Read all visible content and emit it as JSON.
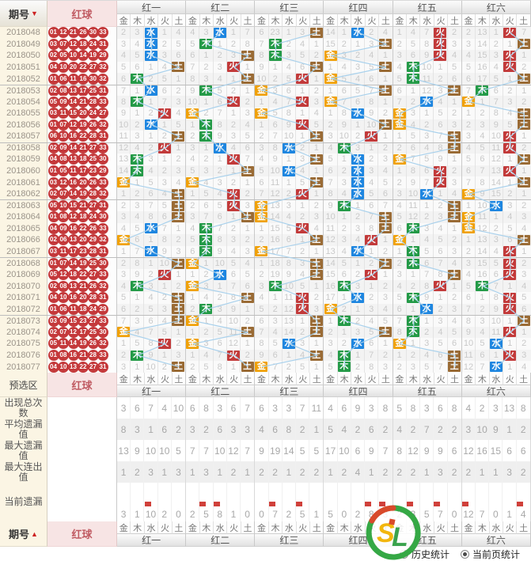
{
  "header": {
    "period_label": "期号",
    "sort_down": "▼",
    "sort_up": "▲",
    "ball_label": "红球",
    "preselect_label": "预选区"
  },
  "groups": [
    "红一",
    "红二",
    "红三",
    "红四",
    "红五",
    "红六"
  ],
  "elements": [
    "金",
    "木",
    "水",
    "火",
    "土"
  ],
  "element_colors": {
    "金": "#f0a108",
    "木": "#239a47",
    "水": "#1e86e0",
    "火": "#c23a3a",
    "土": "#9a6b35"
  },
  "trend_line_color": "#a9d1ec",
  "initial_miss": [
    [
      1,
      2,
      0,
      0,
      3
    ],
    [
      3,
      2,
      0,
      0,
      6
    ],
    [
      5,
      22,
      0,
      2,
      0
    ],
    [
      13,
      0,
      0,
      1,
      3
    ],
    [
      0,
      3,
      6,
      0,
      1
    ],
    [
      1,
      12,
      0,
      0,
      6
    ]
  ],
  "rows": [
    {
      "period": "2018048",
      "balls": [
        "01",
        "12",
        "21",
        "26",
        "30",
        "33"
      ],
      "hits": "水水土水火火"
    },
    {
      "period": "2018049",
      "balls": [
        "03",
        "07",
        "12",
        "18",
        "24",
        "31"
      ],
      "hits": "水木木土火土"
    },
    {
      "period": "2018050",
      "balls": [
        "02",
        "05",
        "10",
        "14",
        "19",
        "29"
      ],
      "hits": "水土木金火火"
    },
    {
      "period": "2018051",
      "balls": [
        "04",
        "10",
        "20",
        "22",
        "27",
        "32"
      ],
      "hits": "土火土土木火"
    },
    {
      "period": "2018052",
      "balls": [
        "01",
        "06",
        "11",
        "16",
        "30",
        "32"
      ],
      "hits": "木土火金木土"
    },
    {
      "period": "2018053",
      "balls": [
        "02",
        "08",
        "13",
        "17",
        "25",
        "31"
      ],
      "hits": "水木金土土木"
    },
    {
      "period": "2018054",
      "balls": [
        "05",
        "09",
        "14",
        "21",
        "28",
        "33"
      ],
      "hits": "木火火金水金"
    },
    {
      "period": "2018055",
      "balls": [
        "03",
        "11",
        "15",
        "20",
        "24",
        "27"
      ],
      "hits": "火金金水金土"
    },
    {
      "period": "2018056",
      "balls": [
        "01",
        "07",
        "12",
        "19",
        "26",
        "32"
      ],
      "hits": "水木火土金土"
    },
    {
      "period": "2018057",
      "balls": [
        "06",
        "10",
        "16",
        "22",
        "28",
        "31"
      ],
      "hits": "土木土火土火"
    },
    {
      "period": "2018058",
      "balls": [
        "02",
        "09",
        "14",
        "21",
        "27",
        "33"
      ],
      "hits": "火水水木土火"
    },
    {
      "period": "2018059",
      "balls": [
        "04",
        "08",
        "13",
        "18",
        "25",
        "30"
      ],
      "hits": "木火土水金土"
    },
    {
      "period": "2018060",
      "balls": [
        "01",
        "05",
        "11",
        "17",
        "23",
        "29"
      ],
      "hits": "木土水水火火"
    },
    {
      "period": "2018061",
      "balls": [
        "03",
        "12",
        "16",
        "20",
        "26",
        "33"
      ],
      "hits": "金金土水火土"
    },
    {
      "period": "2018062",
      "balls": [
        "02",
        "07",
        "14",
        "19",
        "28",
        "32"
      ],
      "hits": "土火火水水金"
    },
    {
      "period": "2018063",
      "balls": [
        "05",
        "10",
        "15",
        "21",
        "27",
        "31"
      ],
      "hits": "土火金木土水"
    },
    {
      "period": "2018064",
      "balls": [
        "01",
        "08",
        "12",
        "18",
        "24",
        "30"
      ],
      "hits": "土土金土土金"
    },
    {
      "period": "2018065",
      "balls": [
        "04",
        "09",
        "16",
        "22",
        "26",
        "33"
      ],
      "hits": "水木火土木金"
    },
    {
      "period": "2018066",
      "balls": [
        "02",
        "06",
        "13",
        "20",
        "29",
        "32"
      ],
      "hits": "金木土火金土"
    },
    {
      "period": "2018067",
      "balls": [
        "03",
        "11",
        "17",
        "23",
        "28",
        "31"
      ],
      "hits": "水木金水木火"
    },
    {
      "period": "2018068",
      "balls": [
        "01",
        "07",
        "14",
        "19",
        "25",
        "30"
      ],
      "hits": "土金土土木火"
    },
    {
      "period": "2018069",
      "balls": [
        "05",
        "12",
        "18",
        "22",
        "27",
        "33"
      ],
      "hits": "火水土火土火"
    },
    {
      "period": "2018070",
      "balls": [
        "02",
        "08",
        "13",
        "21",
        "26",
        "32"
      ],
      "hits": "木金木木火木"
    },
    {
      "period": "2018071",
      "balls": [
        "04",
        "10",
        "16",
        "20",
        "28",
        "31"
      ],
      "hits": "土土火水木火"
    },
    {
      "period": "2018072",
      "balls": [
        "01",
        "06",
        "11",
        "18",
        "24",
        "29"
      ],
      "hits": "土木火金水火"
    },
    {
      "period": "2018073",
      "balls": [
        "03",
        "09",
        "15",
        "23",
        "27",
        "33"
      ],
      "hits": "土金土木木土"
    },
    {
      "period": "2018074",
      "balls": [
        "02",
        "07",
        "12",
        "17",
        "25",
        "30"
      ],
      "hits": "金土土土木火"
    },
    {
      "period": "2018075",
      "balls": [
        "05",
        "11",
        "14",
        "19",
        "26",
        "32"
      ],
      "hits": "火金水水金水"
    },
    {
      "period": "2018076",
      "balls": [
        "01",
        "08",
        "16",
        "21",
        "28",
        "33"
      ],
      "hits": "木火土木土火"
    },
    {
      "period": "2018077",
      "balls": [
        "04",
        "10",
        "13",
        "22",
        "27",
        "31"
      ],
      "hits": "土土金木土水"
    }
  ],
  "stats_labels": [
    "出现总次数",
    "平均遗漏值",
    "最大遗漏值",
    "最大连出值",
    "当前遗漏"
  ],
  "stats": {
    "appear": [
      [
        3,
        6,
        7,
        4,
        10
      ],
      [
        6,
        8,
        3,
        6,
        7
      ],
      [
        6,
        3,
        3,
        7,
        11
      ],
      [
        4,
        6,
        9,
        3,
        8
      ],
      [
        5,
        8,
        3,
        6,
        8
      ],
      [
        4,
        2,
        3,
        13,
        8
      ]
    ],
    "avg_miss": [
      [
        8,
        3,
        1,
        6,
        2
      ],
      [
        3,
        2,
        6,
        3,
        3
      ],
      [
        4,
        6,
        8,
        2,
        1
      ],
      [
        5,
        4,
        2,
        6,
        2
      ],
      [
        4,
        2,
        7,
        2,
        2
      ],
      [
        3,
        10,
        9,
        1,
        2
      ]
    ],
    "max_miss": [
      [
        13,
        9,
        10,
        10,
        5
      ],
      [
        7,
        7,
        10,
        12,
        7
      ],
      [
        9,
        19,
        14,
        5,
        5
      ],
      [
        17,
        10,
        6,
        9,
        7
      ],
      [
        8,
        12,
        9,
        9,
        6
      ],
      [
        12,
        16,
        15,
        6,
        6
      ]
    ],
    "max_streak": [
      [
        1,
        2,
        3,
        1,
        3
      ],
      [
        1,
        3,
        1,
        2,
        1
      ],
      [
        2,
        2,
        1,
        2,
        2
      ],
      [
        1,
        2,
        4,
        1,
        2
      ],
      [
        2,
        2,
        1,
        3,
        2
      ],
      [
        2,
        1,
        1,
        3,
        2
      ]
    ],
    "current": [
      [
        3,
        1,
        10,
        2,
        0
      ],
      [
        2,
        5,
        8,
        1,
        0
      ],
      [
        0,
        7,
        2,
        5,
        1
      ],
      [
        5,
        0,
        2,
        8,
        3
      ],
      [
        2,
        3,
        5,
        7,
        0
      ],
      [
        12,
        7,
        0,
        1,
        4
      ]
    ],
    "current_marked": [
      [
        0,
        0,
        1,
        0,
        0
      ],
      [
        0,
        1,
        1,
        0,
        0
      ],
      [
        0,
        1,
        0,
        1,
        0
      ],
      [
        0,
        0,
        0,
        1,
        1
      ],
      [
        0,
        1,
        0,
        1,
        0
      ],
      [
        1,
        0,
        0,
        0,
        1
      ]
    ]
  },
  "footer": {
    "period_label": "期号",
    "ball_label": "红球",
    "radios": [
      {
        "label": "历史统计",
        "selected": false
      },
      {
        "label": "当前页统计",
        "selected": true
      }
    ],
    "logo_text": "SL"
  }
}
